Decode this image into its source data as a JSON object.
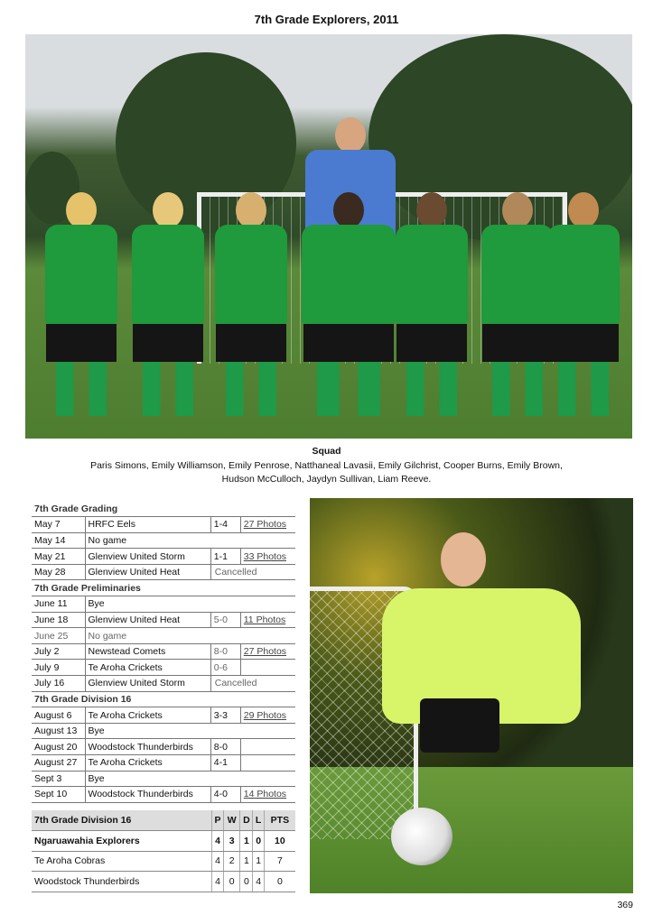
{
  "title": "7th Grade Explorers,  2011",
  "squad": {
    "heading": "Squad",
    "line1": "Paris Simons, Emily Williamson, Emily Penrose, Natthaneal Lavasii, Emily Gilchrist, Cooper Burns, Emily Brown,",
    "line2": "Hudson McCulloch, Jaydyn Sullivan, Liam Reeve."
  },
  "schedule": [
    {
      "section": "7th Grade Grading",
      "games": [
        {
          "date": "May 7",
          "opponent": "HRFC Eels",
          "score": "1-4",
          "photos": "27 Photos"
        },
        {
          "date": "May 14",
          "opponent": "No game"
        },
        {
          "date": "May 21",
          "opponent": "Glenview United Storm",
          "score": "1-1",
          "photos": "33 Photos"
        },
        {
          "date": "May 28",
          "opponent": "Glenview United Heat",
          "status": "Cancelled"
        }
      ]
    },
    {
      "section": "7th Grade Preliminaries",
      "games": [
        {
          "date": "June 11",
          "opponent": "Bye"
        },
        {
          "date": "June 18",
          "opponent": "Glenview United Heat",
          "score": "5-0",
          "photos": "11 Photos"
        },
        {
          "date": "June 25",
          "opponent": "No game",
          "muted": true
        },
        {
          "date": "July 2",
          "opponent": "Newstead Comets",
          "score": "8-0",
          "photos": "27 Photos"
        },
        {
          "date": "July 9",
          "opponent": "Te Aroha Crickets",
          "score": "0-6",
          "photos": ""
        },
        {
          "date": "July 16",
          "opponent": "Glenview United Storm",
          "status": "Cancelled"
        }
      ]
    },
    {
      "section": "7th Grade Division 16",
      "games": [
        {
          "date": "August 6",
          "opponent": "Te Aroha Crickets",
          "score": "3-3",
          "photos": "29 Photos"
        },
        {
          "date": "August 13",
          "opponent": "Bye"
        },
        {
          "date": "August 20",
          "opponent": "Woodstock Thunderbirds",
          "score": "8-0",
          "photos": ""
        },
        {
          "date": "August 27",
          "opponent": "Te Aroha Crickets",
          "score": "4-1",
          "photos": ""
        },
        {
          "date": "Sept 3",
          "opponent": "Bye"
        },
        {
          "date": "Sept 10",
          "opponent": "Woodstock Thunderbirds",
          "score": "4-0",
          "photos": "14 Photos"
        }
      ]
    }
  ],
  "standings": {
    "headers": [
      "7th Grade Division 16",
      "P",
      "W",
      "D",
      "L",
      "PTS"
    ],
    "rows": [
      [
        "Ngaruawahia Explorers",
        "4",
        "3",
        "1",
        "0",
        "10"
      ],
      [
        "Te Aroha Cobras",
        "4",
        "2",
        "1",
        "1",
        "7"
      ],
      [
        "Woodstock Thunderbirds",
        "4",
        "0",
        "0",
        "4",
        "0"
      ]
    ],
    "highlight_row": 0
  },
  "page_number": "369"
}
